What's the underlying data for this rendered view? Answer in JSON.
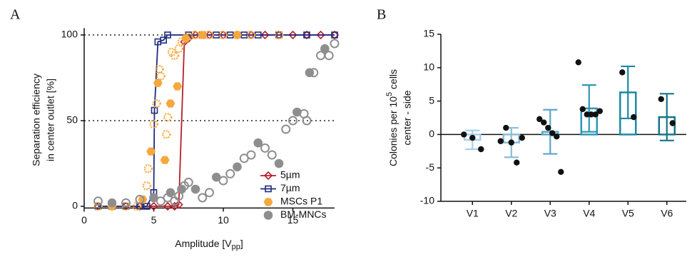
{
  "chart_data": [
    {
      "type": "scatter",
      "panel": "A",
      "x_label": {
        "text": "Amplitude [V",
        "sub": "pp",
        "end": "]"
      },
      "y_label": [
        "Separation efficiency",
        "in center outlet [%]"
      ],
      "xlim": [
        0,
        18
      ],
      "xticks": [
        0,
        5,
        10,
        15
      ],
      "ylim": [
        -1,
        104
      ],
      "yticks": [
        0,
        50,
        100
      ],
      "ref_lines": [
        50,
        100
      ],
      "series": [
        {
          "name": "5µm",
          "color": "#b4202a",
          "marker": "diamond",
          "line": true,
          "x": [
            1,
            2,
            3,
            4,
            5,
            6,
            6.5,
            6.8,
            7.2,
            7.5,
            8,
            9,
            10,
            11,
            12,
            13,
            14,
            15,
            16,
            17,
            18
          ],
          "values": [
            0,
            0,
            0,
            0,
            0,
            0,
            0,
            1,
            96,
            98,
            100,
            100,
            100,
            100,
            100,
            100,
            100,
            100,
            100,
            100,
            100
          ]
        },
        {
          "name": "7µm",
          "color": "#1f2b7f",
          "marker": "square",
          "line": true,
          "x": [
            1,
            2,
            3,
            4,
            4.5,
            5,
            5.05,
            5.3,
            5.7,
            6,
            7.5,
            8.5,
            9.5,
            10.5,
            11.5,
            12.5,
            14,
            16,
            18
          ],
          "values": [
            0,
            0,
            0,
            0,
            0,
            8,
            56,
            96,
            97,
            100,
            100,
            100,
            100,
            100,
            100,
            100,
            100,
            100,
            100
          ]
        },
        {
          "name": "MSCs P1",
          "color": "#f6a83c",
          "marker": "hexagon",
          "line": false,
          "x": [
            1,
            2,
            3,
            3.8,
            4.2,
            4.5,
            4.6,
            4.8,
            5,
            5.2,
            5.3,
            5.4,
            5.5,
            5.8,
            5.9,
            6,
            6.2,
            6.3,
            6.5,
            6.7,
            6.8,
            7,
            7.3,
            7.5,
            8,
            8.5,
            9,
            10,
            11,
            12,
            14
          ],
          "values": [
            0,
            0,
            0,
            0,
            4,
            12,
            22,
            32,
            48,
            60,
            72,
            80,
            76,
            27,
            42,
            52,
            60,
            90,
            88,
            70,
            92,
            96,
            98,
            99,
            100,
            100,
            100,
            100,
            100,
            100,
            100
          ]
        },
        {
          "name": "BM-MNCs",
          "color": "#8e8e8e",
          "marker": "circle",
          "line": false,
          "x": [
            1,
            2,
            3,
            4,
            5,
            5.5,
            6,
            6.2,
            6.5,
            6.8,
            7,
            7.2,
            7.5,
            8,
            8.5,
            9,
            9.5,
            10,
            10.5,
            11,
            11.5,
            12,
            12.5,
            13,
            13.5,
            14,
            14.5,
            15,
            15.3,
            15.8,
            16,
            16.2,
            16.5,
            17,
            17.3,
            17.6,
            18
          ],
          "values": [
            3,
            2,
            2,
            4,
            5,
            3,
            5,
            8,
            3,
            6,
            10,
            12,
            14,
            10,
            5,
            8,
            17,
            15,
            19,
            23,
            28,
            30,
            37,
            34,
            30,
            25,
            45,
            50,
            55,
            54,
            50,
            78,
            78,
            88,
            92,
            88,
            95
          ]
        }
      ]
    },
    {
      "type": "bar",
      "panel": "B",
      "y_label": {
        "text": "Colonies per 10",
        "sup": "5",
        "end": " cells",
        "line2": "center - side"
      },
      "categories": [
        "V1",
        "V2",
        "V3",
        "V4",
        "V5",
        "V6"
      ],
      "values": [
        -0.8,
        -1.2,
        0.4,
        3.9,
        6.3,
        2.6
      ],
      "errors": [
        1.4,
        2.2,
        3.3,
        3.5,
        3.9,
        3.5
      ],
      "points": [
        [
          0,
          -0.5,
          -2.2
        ],
        [
          -1,
          1,
          -1.2,
          -4.2,
          -0.5
        ],
        [
          2.3,
          1.8,
          1,
          0.2,
          -0.3,
          -5.6
        ],
        [
          10.8,
          3.8,
          3,
          3,
          3,
          3.5
        ],
        [
          9.3,
          2.6
        ],
        [
          5.3,
          1.7
        ]
      ],
      "colors": [
        "#a9d0e6",
        "#86bcdb",
        "#5aa6c9",
        "#2e97b5",
        "#1c8aa3",
        "#167589"
      ],
      "ylim": [
        -10,
        15
      ],
      "yticks": [
        -10,
        -5,
        0,
        5,
        10,
        15
      ]
    }
  ]
}
